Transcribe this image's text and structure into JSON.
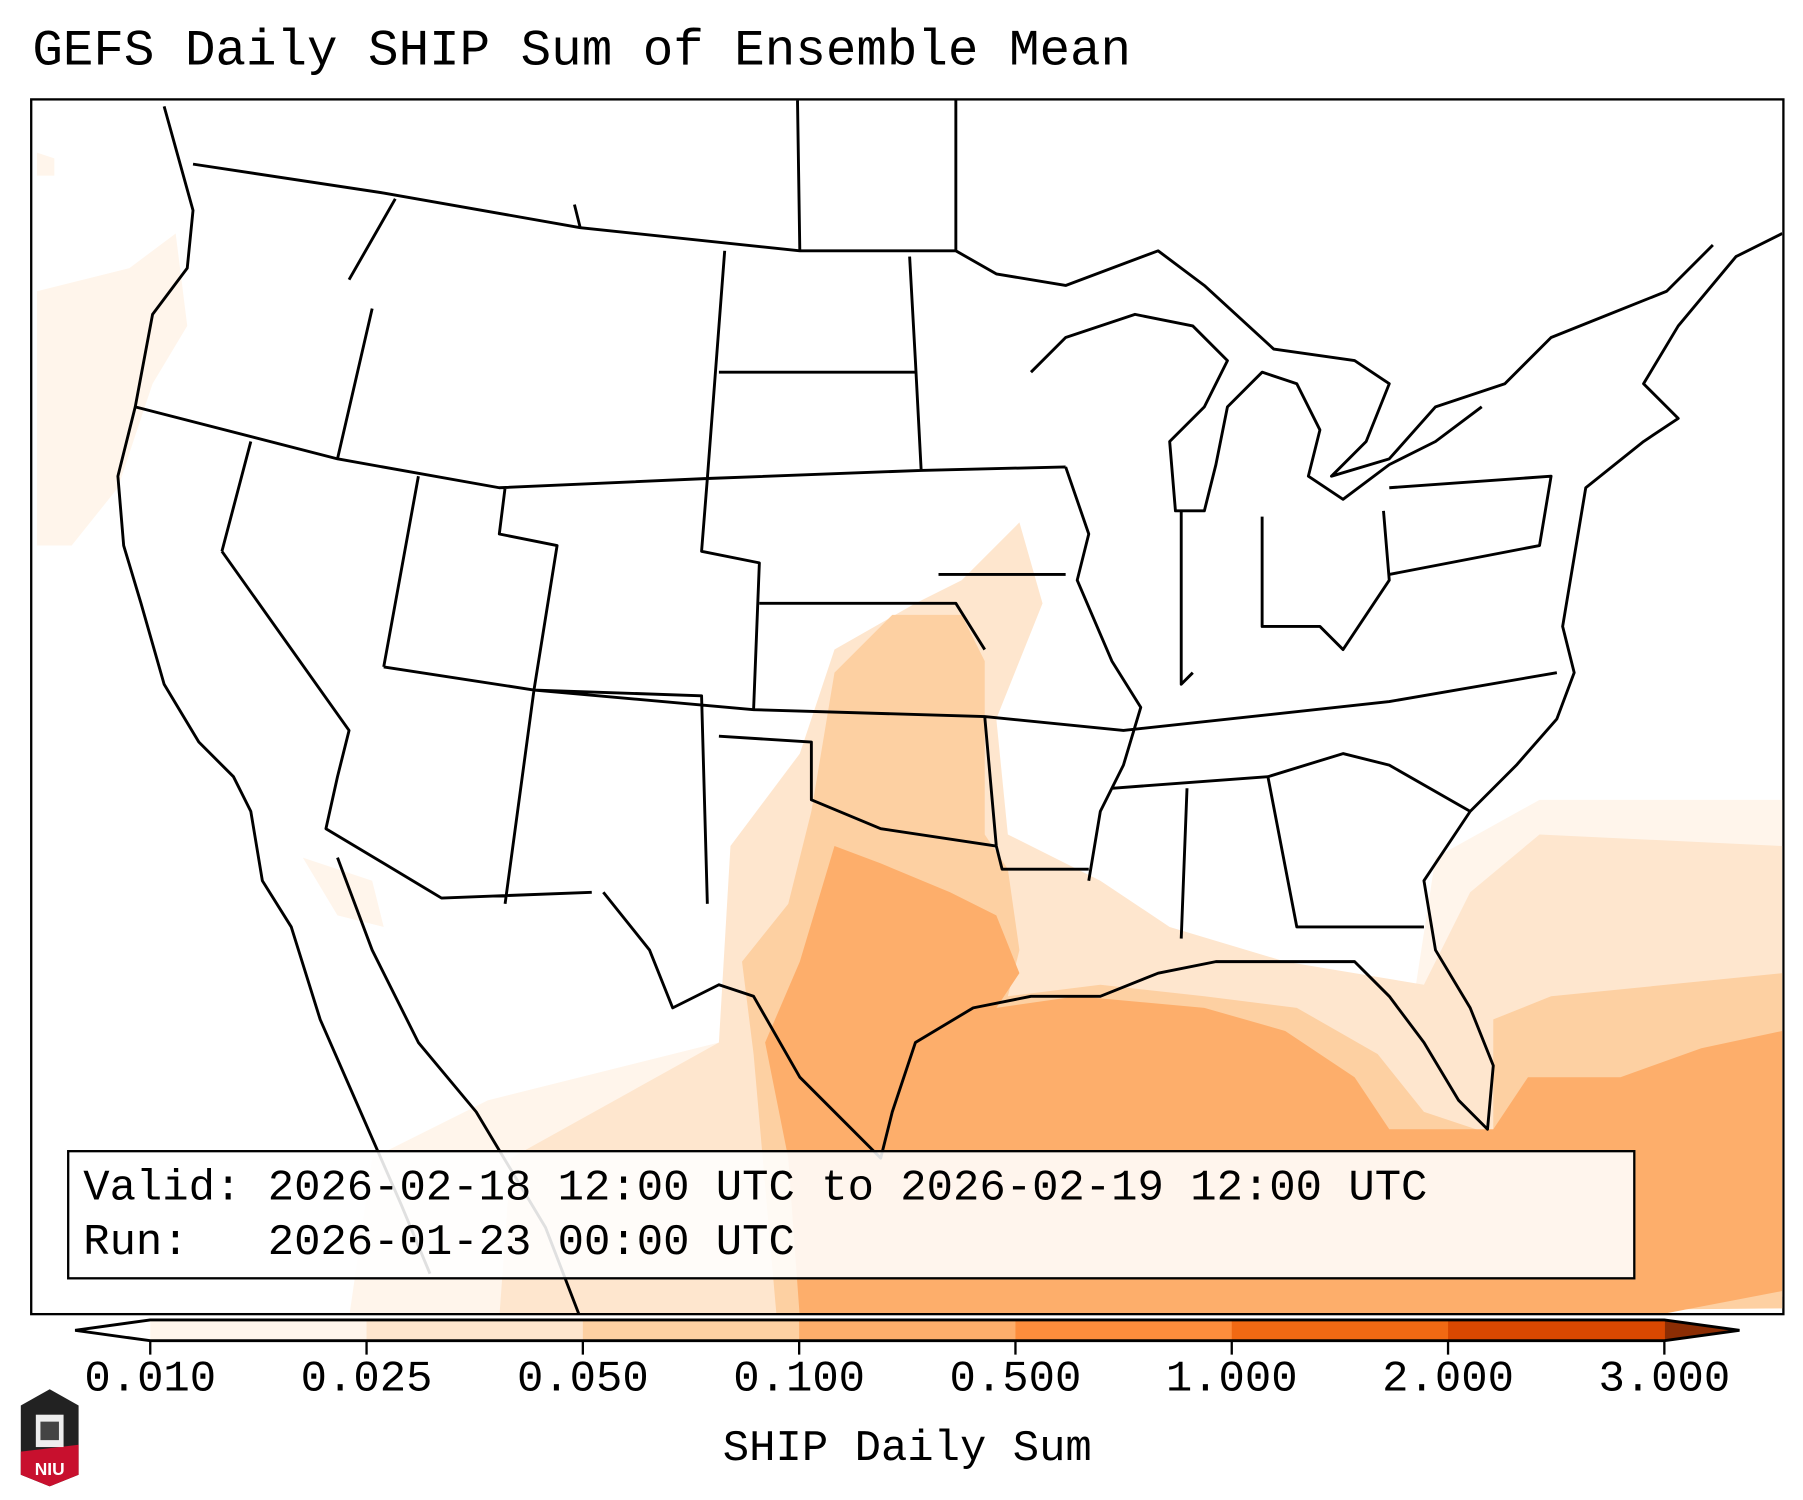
{
  "title": "GEFS Daily SHIP Sum of Ensemble Mean",
  "info": {
    "valid_label": "Valid:",
    "valid_value": "2026-02-18 12:00 UTC to 2026-02-19 12:00 UTC",
    "run_label": "Run:",
    "run_value": "2026-01-23 00:00 UTC"
  },
  "colorbar": {
    "label": "SHIP Daily Sum",
    "ticks": [
      "0.010",
      "0.025",
      "0.050",
      "0.100",
      "0.500",
      "1.000",
      "2.000",
      "3.000"
    ],
    "colors": [
      "#fff5eb",
      "#fee6ce",
      "#fdd0a2",
      "#fdae6b",
      "#fd8d3c",
      "#f16913",
      "#d94801"
    ],
    "under_color": "#ffffff",
    "over_color": "#8c2d04"
  },
  "logo": {
    "text": "NIU"
  }
}
